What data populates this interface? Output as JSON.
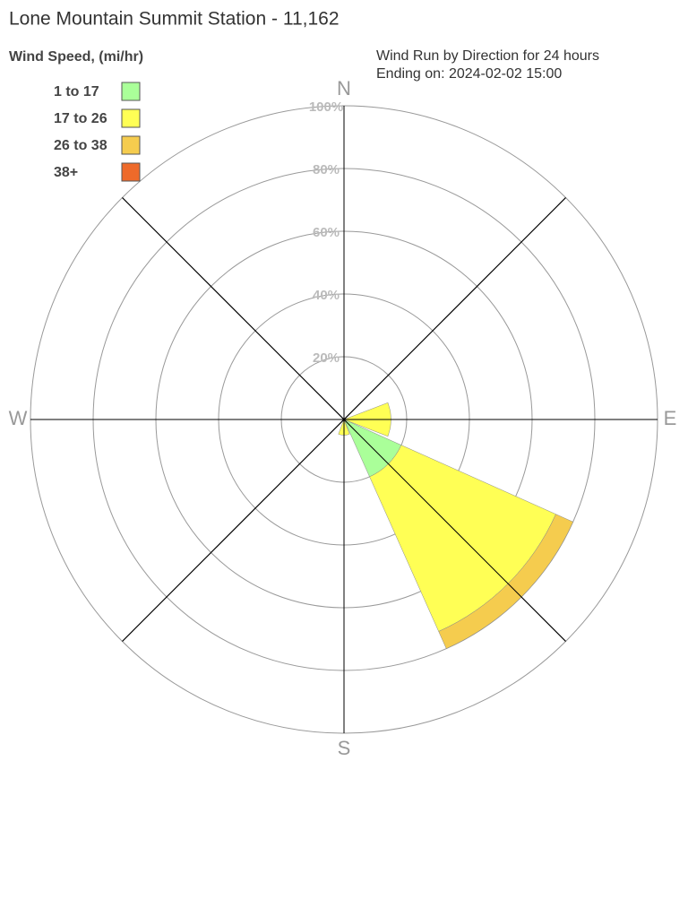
{
  "chart_data": {
    "type": "windrose",
    "title": "Lone Mountain Summit Station - 11,162",
    "legend_title": "Wind Speed, (mi/hr)",
    "subtitle": [
      "Wind Run by Direction for 24 hours",
      "Ending on: 2024-02-02 15:00"
    ],
    "categories": [
      "N",
      null,
      "E",
      null,
      "S",
      null,
      "W",
      null
    ],
    "series": [
      {
        "name": "1 to 17",
        "color": "#aaff99",
        "values": [
          0,
          0,
          0,
          20,
          0,
          0,
          0,
          0
        ]
      },
      {
        "name": "17 to 26",
        "color": "#ffff55",
        "values": [
          0,
          0,
          15,
          54,
          5,
          0,
          0,
          0
        ]
      },
      {
        "name": "26 to 38",
        "color": "#f5cc4e",
        "values": [
          0,
          0,
          0,
          6,
          0,
          0,
          0,
          0
        ]
      },
      {
        "name": "38+",
        "color": "#ee6a2a",
        "values": [
          0,
          0,
          0,
          0,
          0,
          0,
          0,
          0
        ]
      }
    ],
    "rlim": [
      0,
      100
    ],
    "rticks": [
      {
        "value": 20,
        "label": "20%"
      },
      {
        "value": 40,
        "label": "40%"
      },
      {
        "value": 60,
        "label": "60%"
      },
      {
        "value": 80,
        "label": "80%"
      },
      {
        "value": 100,
        "label": "100%"
      }
    ],
    "grid": true
  }
}
